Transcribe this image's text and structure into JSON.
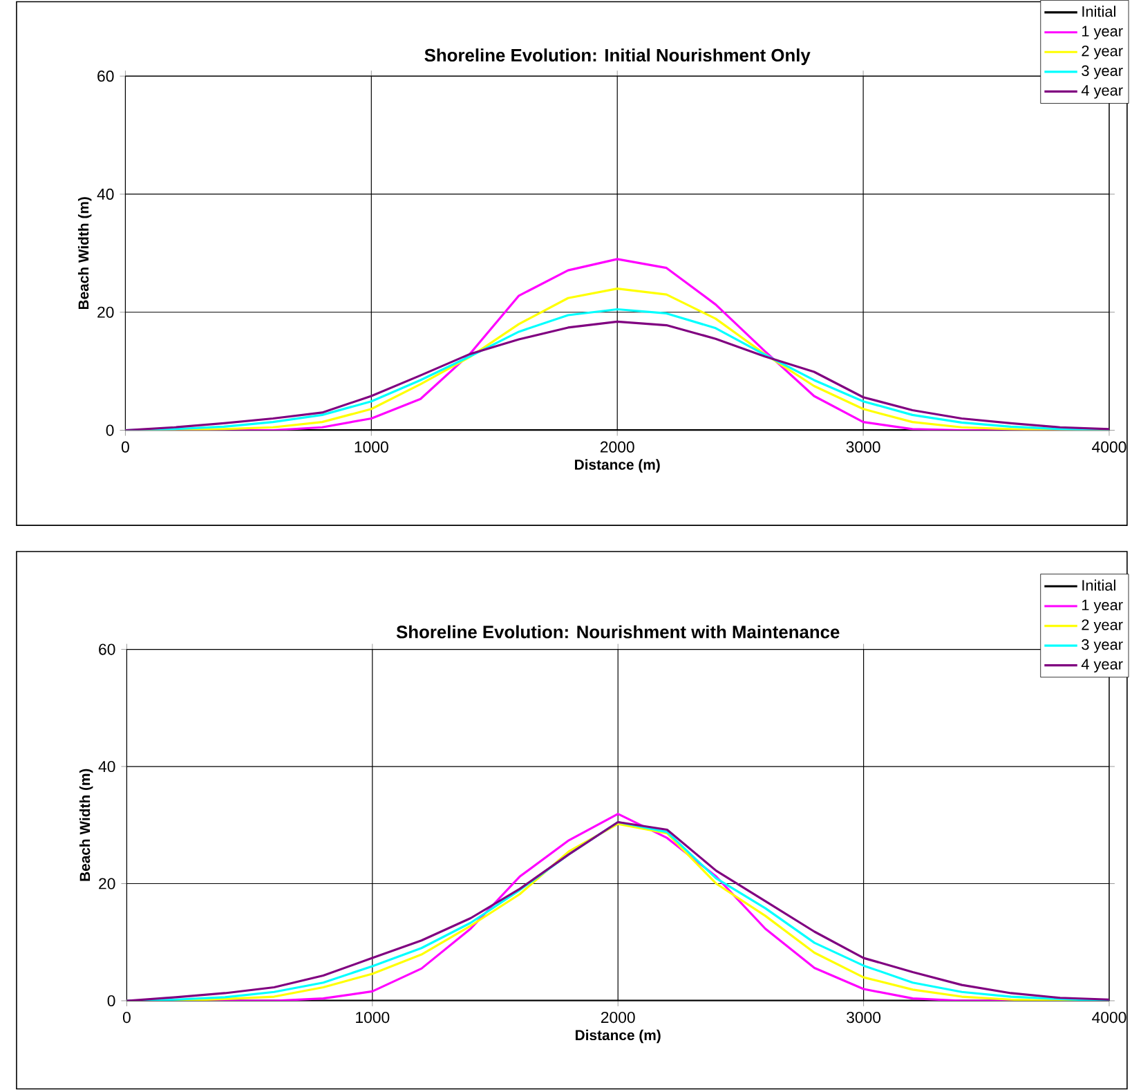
{
  "chart_data": [
    {
      "type": "line",
      "title": "Shoreline Evolution: Initial Nourishment Only",
      "xlabel": "Distance (m)",
      "ylabel": "Beach Width (m)",
      "x": [
        0,
        200,
        400,
        600,
        800,
        1000,
        1200,
        1400,
        1600,
        1800,
        2000,
        2200,
        2400,
        2600,
        2800,
        3000,
        3200,
        3400,
        3600,
        3800,
        4000
      ],
      "series": [
        {
          "name": "Initial",
          "color": "#000000",
          "values": [
            0,
            0,
            0,
            0,
            0,
            0,
            0,
            0,
            0,
            0,
            0,
            0,
            0,
            0,
            0,
            0,
            0,
            0,
            0,
            0,
            0
          ]
        },
        {
          "name": "1 year",
          "color": "#ff00ff",
          "values": [
            0,
            0,
            0,
            0,
            0.5,
            2.0,
            5.3,
            12.9,
            22.8,
            27.1,
            29,
            27.5,
            21.3,
            13.4,
            5.8,
            1.4,
            0.2,
            0,
            0,
            0,
            0
          ]
        },
        {
          "name": "2 year",
          "color": "#ffff00",
          "values": [
            0,
            0,
            0.2,
            0.5,
            1.4,
            3.6,
            7.8,
            12.4,
            18,
            22.4,
            24,
            23,
            18.9,
            12.9,
            7.5,
            3.6,
            1.4,
            0.5,
            0.2,
            0,
            0
          ]
        },
        {
          "name": "3 year",
          "color": "#00ffff",
          "values": [
            0,
            0.2,
            0.6,
            1.4,
            2.6,
            4.9,
            8.5,
            12.5,
            16.7,
            19.5,
            20.5,
            19.8,
            17.3,
            12.8,
            8.5,
            4.9,
            2.6,
            1.3,
            0.6,
            0.2,
            0
          ]
        },
        {
          "name": "4 year",
          "color": "#800080",
          "values": [
            0,
            0.5,
            1.2,
            2.0,
            3.0,
            5.8,
            9.3,
            12.9,
            15.4,
            17.4,
            18.4,
            17.8,
            15.5,
            12.5,
            9.9,
            5.6,
            3.4,
            2.0,
            1.2,
            0.5,
            0.2
          ]
        }
      ],
      "xlim": [
        0,
        4000
      ],
      "ylim": [
        0,
        60
      ],
      "xticks": [
        0,
        1000,
        2000,
        3000,
        4000
      ],
      "yticks": [
        0,
        20,
        40,
        60
      ],
      "grid": true,
      "legend": "top right",
      "marker": "none",
      "line_style": "solid"
    },
    {
      "type": "line",
      "title": "Shoreline Evolution: Nourishment with Maintenance",
      "xlabel": "Distance (m)",
      "ylabel": "Beach Width (m)",
      "x": [
        0,
        200,
        400,
        600,
        800,
        1000,
        1200,
        1400,
        1600,
        1800,
        2000,
        2200,
        2400,
        2600,
        2800,
        3000,
        3200,
        3400,
        3600,
        3800,
        4000
      ],
      "series": [
        {
          "name": "Initial",
          "color": "#000000",
          "values": [
            0,
            0,
            0,
            0,
            0,
            0,
            0,
            0,
            0,
            0,
            0,
            0,
            0,
            0,
            0,
            0,
            0,
            0,
            0,
            0,
            0
          ]
        },
        {
          "name": "1 year",
          "color": "#ff00ff",
          "values": [
            0,
            0,
            0,
            0,
            0.4,
            1.6,
            5.5,
            12.3,
            21.2,
            27.4,
            31.9,
            27.8,
            21.2,
            12.3,
            5.6,
            2.0,
            0.4,
            0,
            0,
            0,
            0
          ]
        },
        {
          "name": "2 year",
          "color": "#ffff00",
          "values": [
            0,
            0,
            0.3,
            0.7,
            2.3,
            4.6,
            7.9,
            12.8,
            18.2,
            25.5,
            30.2,
            28.6,
            20,
            14.5,
            8.2,
            4.0,
            1.9,
            0.7,
            0.2,
            0,
            0
          ]
        },
        {
          "name": "3 year",
          "color": "#00ffff",
          "values": [
            0,
            0.2,
            0.6,
            1.5,
            3.1,
            5.9,
            9.0,
            13.3,
            18.9,
            25,
            30.5,
            28.8,
            20.9,
            15.8,
            9.9,
            6.0,
            3.1,
            1.5,
            0.7,
            0.3,
            0
          ]
        },
        {
          "name": "4 year",
          "color": "#800080",
          "values": [
            0,
            0.6,
            1.3,
            2.3,
            4.3,
            7.3,
            10.3,
            14.1,
            19.1,
            25,
            30.5,
            29.2,
            22.2,
            17,
            11.8,
            7.3,
            4.9,
            2.7,
            1.3,
            0.5,
            0.2
          ]
        }
      ],
      "xlim": [
        0,
        4000
      ],
      "ylim": [
        0,
        60
      ],
      "xticks": [
        0,
        1000,
        2000,
        3000,
        4000
      ],
      "yticks": [
        0,
        20,
        40,
        60
      ],
      "grid": true,
      "legend": "top right",
      "marker": "none",
      "line_style": "solid"
    }
  ]
}
